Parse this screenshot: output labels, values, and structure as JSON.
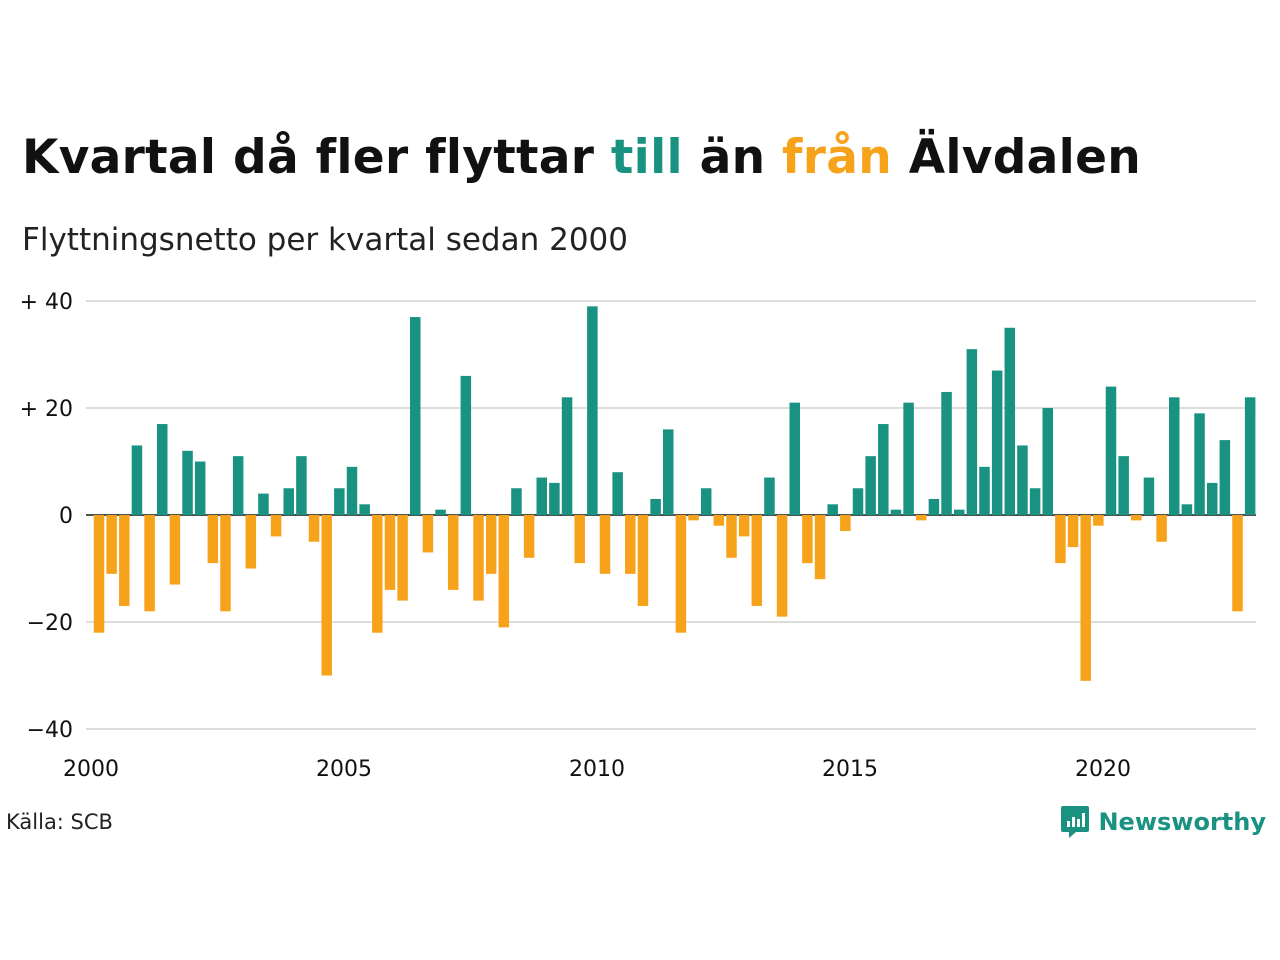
{
  "title": {
    "part1": "Kvartal då fler flyttar ",
    "till": "till",
    "part2": " än ",
    "fran": "från",
    "part3": " Älvdalen"
  },
  "subtitle": "Flyttningsnetto per kvartal sedan 2000",
  "source": "Källa: SCB",
  "brand": "Newsworthy",
  "colors": {
    "positive": "#1a9281",
    "negative": "#f7a21b",
    "grid": "#dddddd",
    "text": "#111111"
  },
  "chart_data": {
    "type": "bar",
    "x_start": "2000 Q1",
    "period": "quarter",
    "values": [
      -22,
      -11,
      -17,
      13,
      -18,
      17,
      -13,
      12,
      10,
      -9,
      -18,
      11,
      -10,
      4,
      -4,
      5,
      11,
      -5,
      -30,
      5,
      9,
      2,
      -22,
      -14,
      -16,
      37,
      -7,
      1,
      -14,
      26,
      -16,
      -11,
      -21,
      5,
      -8,
      7,
      6,
      22,
      -9,
      39,
      -11,
      8,
      -11,
      -17,
      3,
      16,
      -22,
      -1,
      5,
      -2,
      -8,
      -4,
      -17,
      7,
      -19,
      21,
      -9,
      -12,
      2,
      -3,
      5,
      11,
      17,
      1,
      21,
      -1,
      3,
      23,
      1,
      31,
      9,
      27,
      35,
      13,
      5,
      20,
      -9,
      -6,
      -31,
      -2,
      24,
      11,
      -1,
      7,
      -5,
      22,
      2,
      19,
      6,
      14,
      -18,
      22
    ],
    "x_ticks": [
      "2000",
      "2005",
      "2010",
      "2015",
      "2020"
    ],
    "y_ticks": [
      "+ 40",
      "+ 20",
      "0",
      "−20",
      "−40"
    ],
    "y_tick_values": [
      40,
      20,
      0,
      -20,
      -40
    ],
    "ylim": [
      -40,
      40
    ],
    "grid": true
  }
}
